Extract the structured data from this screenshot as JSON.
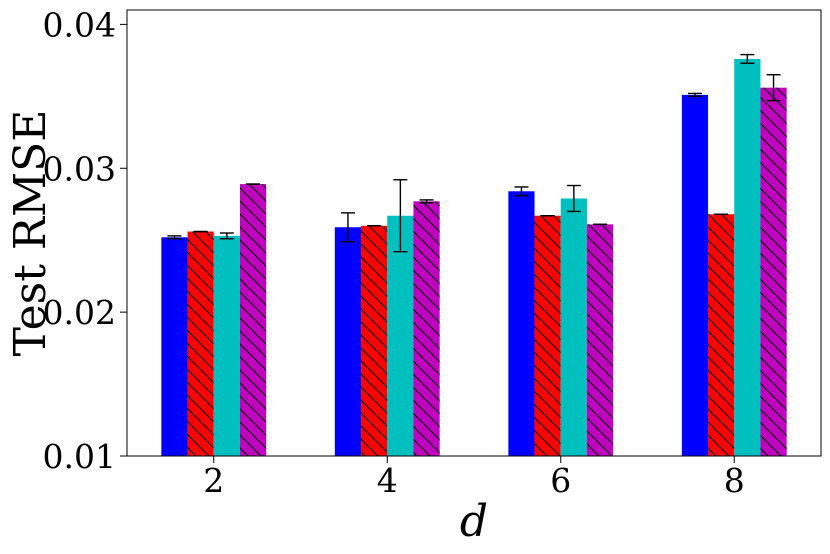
{
  "chart_data": {
    "type": "bar",
    "xlabel": "d",
    "ylabel": "Test RMSE",
    "categories": [
      "2",
      "4",
      "6",
      "8"
    ],
    "ylim": [
      0.01,
      0.041
    ],
    "yticks": [
      "0.01",
      "0.02",
      "0.03",
      "0.04"
    ],
    "grid": false,
    "series": [
      {
        "color": "#0000ff",
        "hatch": false,
        "values": [
          0.0252,
          0.0259,
          0.0284,
          0.0351
        ],
        "errors": [
          0.0001,
          0.001,
          0.0003,
          0.0001
        ]
      },
      {
        "color": "#ff0000",
        "hatch": true,
        "values": [
          0.0256,
          0.026,
          0.0267,
          0.0268
        ],
        "errors": [
          0.0,
          0.0,
          0.0,
          0.0
        ]
      },
      {
        "color": "#00bfbf",
        "hatch": false,
        "values": [
          0.0253,
          0.0267,
          0.0279,
          0.0376
        ],
        "errors": [
          0.0002,
          0.0025,
          0.0009,
          0.0003
        ]
      },
      {
        "color": "#bf00bf",
        "hatch": true,
        "values": [
          0.0289,
          0.0277,
          0.0261,
          0.0356
        ],
        "errors": [
          0.0,
          0.0001,
          0.0,
          0.0009
        ]
      }
    ]
  }
}
